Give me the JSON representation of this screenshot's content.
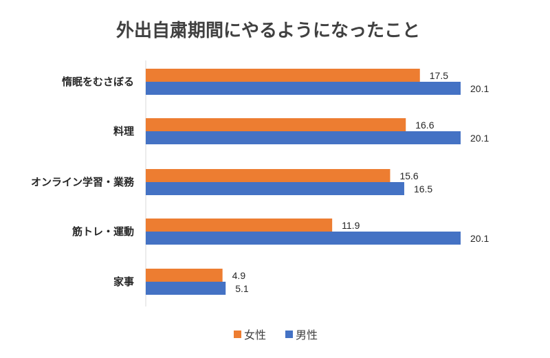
{
  "chart_data": {
    "type": "bar",
    "orientation": "horizontal",
    "title": "外出自粛期間にやるようになったこと",
    "categories": [
      "惰眠をむさぼる",
      "料理",
      "オンライン学習・業務",
      "筋トレ・運動",
      "家事"
    ],
    "series": [
      {
        "name": "女性",
        "color": "#ED7D31",
        "values": [
          17.5,
          16.6,
          15.6,
          11.9,
          4.9
        ],
        "labels": [
          "17.5",
          "16.6",
          "15.6",
          "11.9",
          "4.9"
        ]
      },
      {
        "name": "男性",
        "color": "#4472C4",
        "values": [
          20.1,
          20.1,
          16.5,
          20.1,
          5.1
        ],
        "labels": [
          "20.1",
          "20.1",
          "16.5",
          "20.1",
          "5.1"
        ]
      }
    ],
    "xlim": [
      0,
      20.1
    ],
    "grid": false,
    "legend": "bottom-center"
  }
}
